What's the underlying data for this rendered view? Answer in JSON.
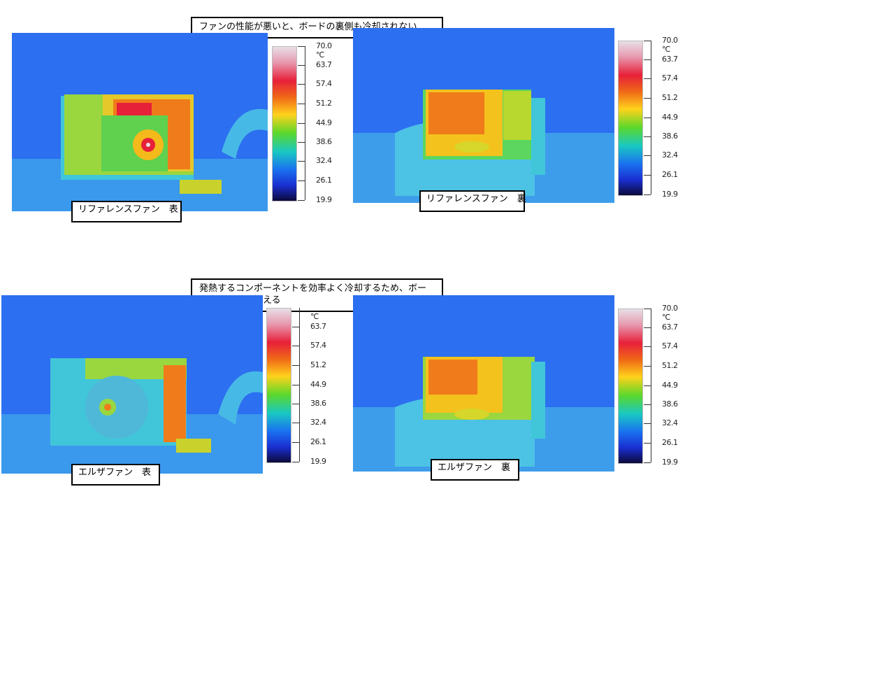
{
  "notes": {
    "top": "ファンの性能が悪いと、ボードの裏側も冷却されない",
    "bottom": "発熱するコンポーネントを効率よく冷却するため、ボード全体の熱を抑える"
  },
  "images": [
    {
      "caption": "リファレンスファン　表"
    },
    {
      "caption": "リファレンスファン　裏"
    },
    {
      "caption": "エルザファン　表"
    },
    {
      "caption": "エルザファン　裏"
    }
  ],
  "scale": {
    "unit": "℃",
    "max": "70.0",
    "ticks": [
      "63.7",
      "57.4",
      "51.2",
      "44.9",
      "38.6",
      "32.4",
      "26.1",
      "19.9"
    ]
  },
  "colors": {
    "background_cold": "#2a6ef2",
    "hot": "#e7203a",
    "warm": "#f06a16",
    "mid": "#5bd82b"
  }
}
